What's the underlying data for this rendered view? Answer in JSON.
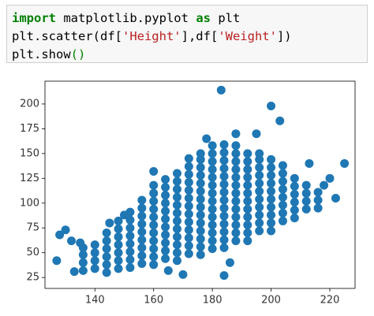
{
  "code": [
    [
      "import",
      " matplotlib.pyplot ",
      "as",
      " plt"
    ],
    [
      "plt.scatter(df[",
      "'Height'",
      "],df[",
      "'Weight'",
      "])"
    ],
    [
      "plt.show",
      "()"
    ]
  ],
  "chart_data": {
    "type": "scatter",
    "color": "#1f77b4",
    "xlim": [
      123,
      228.6
    ],
    "ylim": [
      14,
      223
    ],
    "xticks": [
      140,
      160,
      180,
      200,
      220
    ],
    "yticks": [
      25,
      50,
      75,
      100,
      125,
      150,
      175,
      200
    ],
    "x": [
      136,
      136,
      136,
      136,
      140,
      140,
      140,
      140,
      144,
      144,
      144,
      144,
      144,
      144,
      148,
      148,
      148,
      148,
      148,
      148,
      148,
      152,
      152,
      152,
      152,
      152,
      152,
      152,
      152,
      156,
      156,
      156,
      156,
      156,
      156,
      156,
      156,
      156,
      160,
      160,
      160,
      160,
      160,
      160,
      160,
      160,
      160,
      160,
      160,
      164,
      164,
      164,
      164,
      164,
      164,
      164,
      164,
      164,
      164,
      164,
      168,
      168,
      168,
      168,
      168,
      168,
      168,
      168,
      168,
      168,
      168,
      168,
      172,
      172,
      172,
      172,
      172,
      172,
      172,
      172,
      172,
      172,
      172,
      172,
      172,
      176,
      176,
      176,
      176,
      176,
      176,
      176,
      176,
      176,
      176,
      176,
      176,
      176,
      176,
      180,
      180,
      180,
      180,
      180,
      180,
      180,
      180,
      180,
      180,
      180,
      180,
      180,
      180,
      184,
      184,
      184,
      184,
      184,
      184,
      184,
      184,
      184,
      184,
      184,
      184,
      184,
      184,
      188,
      188,
      188,
      188,
      188,
      188,
      188,
      188,
      188,
      188,
      188,
      188,
      188,
      192,
      192,
      192,
      192,
      192,
      192,
      192,
      192,
      192,
      192,
      192,
      192,
      196,
      196,
      196,
      196,
      196,
      196,
      196,
      196,
      196,
      196,
      196,
      200,
      200,
      200,
      200,
      200,
      200,
      200,
      200,
      200,
      200,
      204,
      204,
      204,
      204,
      204,
      204,
      204,
      204,
      208,
      208,
      208,
      208,
      208,
      208,
      212,
      212,
      212,
      212,
      216,
      216,
      216,
      128,
      130,
      127,
      132,
      135,
      133,
      183,
      200,
      203,
      220,
      225,
      218,
      184,
      186,
      170,
      165,
      150,
      145,
      195,
      213,
      222,
      188,
      178,
      160
    ],
    "values": [
      32,
      40,
      48,
      55,
      34,
      42,
      50,
      58,
      30,
      38,
      46,
      54,
      62,
      70,
      34,
      42,
      50,
      58,
      66,
      74,
      82,
      35,
      43,
      51,
      59,
      67,
      75,
      83,
      91,
      39,
      47,
      55,
      63,
      71,
      79,
      87,
      95,
      103,
      38,
      46,
      54,
      62,
      70,
      78,
      86,
      94,
      102,
      110,
      118,
      44,
      52,
      60,
      68,
      76,
      84,
      92,
      100,
      108,
      116,
      124,
      42,
      50,
      58,
      66,
      74,
      82,
      90,
      98,
      106,
      114,
      122,
      130,
      49,
      57,
      65,
      73,
      81,
      89,
      97,
      105,
      113,
      121,
      129,
      137,
      145,
      48,
      56,
      64,
      72,
      80,
      88,
      96,
      104,
      112,
      120,
      128,
      136,
      144,
      150,
      54,
      62,
      70,
      78,
      86,
      94,
      102,
      110,
      118,
      126,
      134,
      142,
      150,
      158,
      55,
      63,
      71,
      79,
      87,
      95,
      103,
      111,
      119,
      127,
      135,
      143,
      151,
      159,
      62,
      70,
      78,
      86,
      94,
      102,
      110,
      118,
      126,
      134,
      142,
      150,
      158,
      62,
      70,
      78,
      86,
      94,
      102,
      110,
      118,
      126,
      134,
      142,
      150,
      72,
      80,
      88,
      96,
      104,
      112,
      120,
      128,
      136,
      144,
      150,
      72,
      80,
      88,
      96,
      104,
      112,
      120,
      128,
      136,
      144,
      82,
      90,
      98,
      106,
      114,
      122,
      130,
      138,
      85,
      93,
      101,
      109,
      117,
      125,
      94,
      102,
      110,
      118,
      95,
      103,
      111,
      68,
      73,
      42,
      62,
      60,
      31,
      214,
      198,
      183,
      125,
      140,
      118,
      27,
      40,
      28,
      32,
      88,
      80,
      170,
      140,
      105,
      170,
      165,
      132
    ]
  }
}
